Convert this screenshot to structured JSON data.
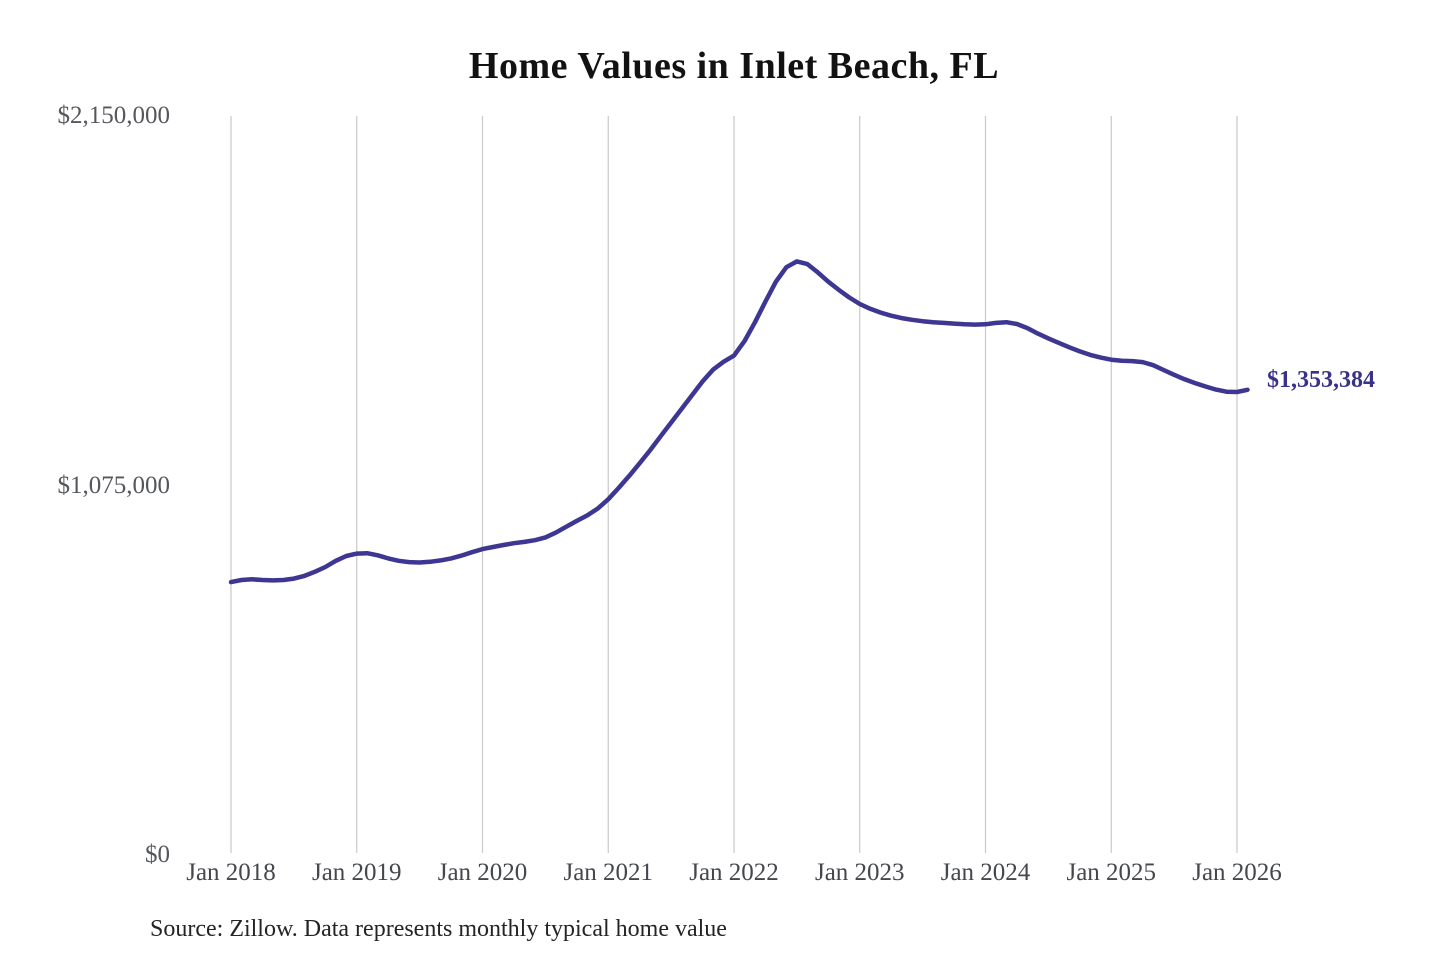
{
  "chart_data": {
    "type": "line",
    "title": "Home Values in Inlet Beach, FL",
    "source_note": "Source: Zillow. Data represents monthly typical home value",
    "series_name": "Monthly typical home value",
    "legend": "none",
    "grid": "vertical-only",
    "x_start": "Jan 2018",
    "x_end": "Feb 2026",
    "x_interval": "monthly",
    "x_ticks": [
      "Jan 2018",
      "Jan 2019",
      "Jan 2020",
      "Jan 2021",
      "Jan 2022",
      "Jan 2023",
      "Jan 2024",
      "Jan 2025",
      "Jan 2026"
    ],
    "y_ticks": [
      {
        "label": "$0",
        "value": 0
      },
      {
        "label": "$1,075,000",
        "value": 1075000
      },
      {
        "label": "$2,150,000",
        "value": 2150000
      }
    ],
    "ylim": [
      0,
      2150000
    ],
    "end_label": "$1,353,384",
    "end_value": 1353384,
    "colors": {
      "line": "#3d3693",
      "end_label": "#39318a",
      "grid": "#c9c9c9",
      "axis_text": "#55575c",
      "title": "#121212",
      "source": "#222426"
    },
    "values": [
      794000,
      800000,
      802000,
      800000,
      799000,
      800000,
      804000,
      812000,
      824000,
      838000,
      856000,
      870000,
      877000,
      878000,
      872000,
      863000,
      856000,
      852000,
      851000,
      853000,
      857000,
      863000,
      871000,
      881000,
      890000,
      896000,
      902000,
      907000,
      911000,
      916000,
      924000,
      938000,
      955000,
      972000,
      988000,
      1008000,
      1035000,
      1068000,
      1103000,
      1140000,
      1178000,
      1218000,
      1258000,
      1298000,
      1338000,
      1378000,
      1412000,
      1435000,
      1453000,
      1495000,
      1550000,
      1610000,
      1668000,
      1710000,
      1727000,
      1719000,
      1695000,
      1668000,
      1644000,
      1622000,
      1603000,
      1589000,
      1578000,
      1569000,
      1562000,
      1557000,
      1553000,
      1550000,
      1548000,
      1546000,
      1544000,
      1543000,
      1544000,
      1548000,
      1550000,
      1545000,
      1533000,
      1517000,
      1503000,
      1490000,
      1477000,
      1465000,
      1455000,
      1447000,
      1441000,
      1438000,
      1437000,
      1434000,
      1425000,
      1411000,
      1397000,
      1384000,
      1373000,
      1363000,
      1354000,
      1348000,
      1347000,
      1353384
    ]
  }
}
